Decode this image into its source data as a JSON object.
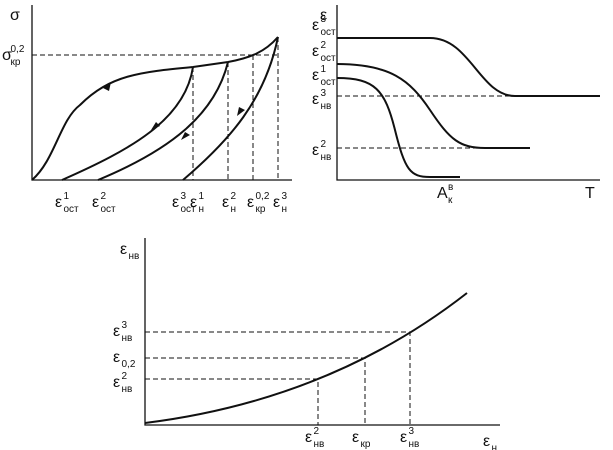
{
  "panel_1": {
    "y_axis_label": "σ",
    "y_marker": {
      "base": "σ",
      "sup": "0,2",
      "sub": "кр"
    },
    "x_markers": [
      {
        "base": "ε",
        "sup": "1",
        "sub": "ост"
      },
      {
        "base": "ε",
        "sup": "2",
        "sub": "ост"
      },
      {
        "base": "ε",
        "sup": "3",
        "sub": "ост"
      },
      {
        "base": "ε",
        "sup": "1",
        "sub": "н"
      },
      {
        "base": "ε",
        "sup": "2",
        "sub": "н"
      },
      {
        "base": "ε",
        "sup": "0,2",
        "sub": "кр"
      },
      {
        "base": "ε",
        "sup": "3",
        "sub": "н"
      }
    ]
  },
  "panel_2": {
    "y_axis_label": "ε",
    "x_axis_label": "T",
    "y_markers": [
      {
        "base": "ε",
        "sup": "3",
        "sub": "ост"
      },
      {
        "base": "ε",
        "sup": "2",
        "sub": "ост"
      },
      {
        "base": "ε",
        "sup": "1",
        "sub": "ост"
      },
      {
        "base": "ε",
        "sup": "3",
        "sub": "нв"
      },
      {
        "base": "ε",
        "sup": "2",
        "sub": "нв"
      }
    ],
    "x_marker": {
      "base": "A",
      "sup": "в",
      "sub": "к"
    }
  },
  "panel_3": {
    "y_axis_label": {
      "base": "ε",
      "sub": "нв"
    },
    "x_axis_label": {
      "base": "ε",
      "sub": "н"
    },
    "y_markers": [
      {
        "base": "ε",
        "sup": "3",
        "sub": "нв"
      },
      {
        "base": "ε",
        "sub": "0,2"
      },
      {
        "base": "ε",
        "sup": "2",
        "sub": "нв"
      }
    ],
    "x_markers": [
      {
        "base": "ε",
        "sup": "2",
        "sub": "нв"
      },
      {
        "base": "ε",
        "sub": "кр"
      },
      {
        "base": "ε",
        "sup": "3",
        "sub": "нв"
      }
    ]
  }
}
